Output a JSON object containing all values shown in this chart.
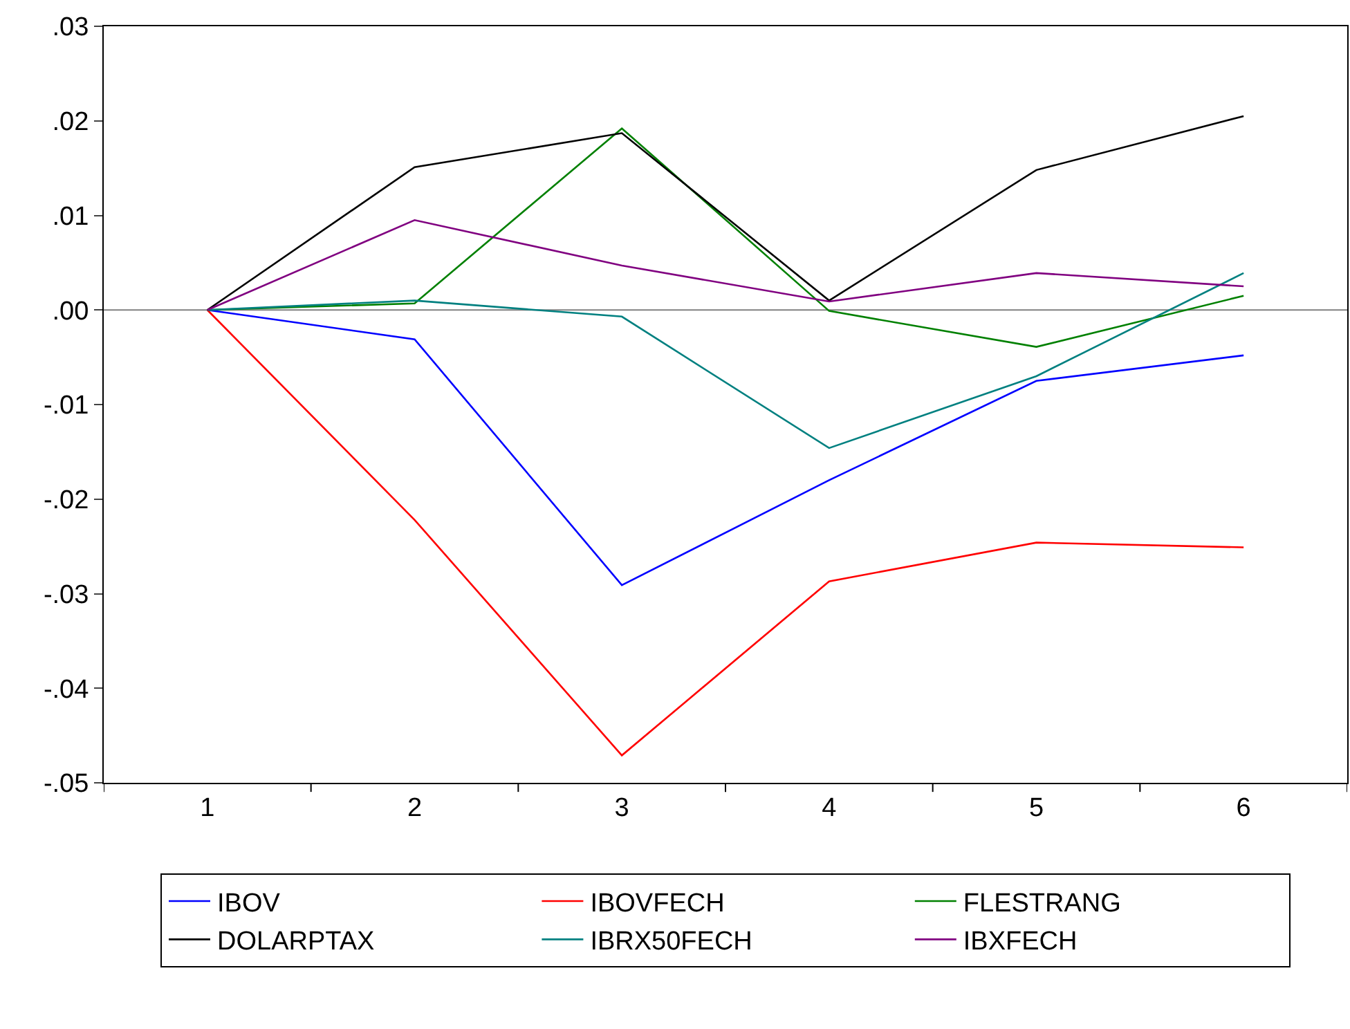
{
  "chart_data": {
    "type": "line",
    "categories": [
      "1",
      "2",
      "3",
      "4",
      "5",
      "6"
    ],
    "series": [
      {
        "name": "IBOV",
        "color": "#0000ff",
        "values": [
          0,
          -0.0031,
          -0.0291,
          -0.018,
          -0.0075,
          -0.0048
        ]
      },
      {
        "name": "IBOVFECH",
        "color": "#ff0000",
        "values": [
          0,
          -0.0222,
          -0.0471,
          -0.0287,
          -0.0246,
          -0.0251
        ]
      },
      {
        "name": "FLESTRANG",
        "color": "#008000",
        "values": [
          0,
          0.0007,
          0.0192,
          -0.0001,
          -0.0039,
          0.0015
        ]
      },
      {
        "name": "DOLARPTAX",
        "color": "#000000",
        "values": [
          0,
          0.0151,
          0.0187,
          0.001,
          0.0148,
          0.0205
        ]
      },
      {
        "name": "IBRX50FECH",
        "color": "#008080",
        "values": [
          0,
          0.001,
          -0.0007,
          -0.0146,
          -0.007,
          0.0039
        ]
      },
      {
        "name": "IBXFECH",
        "color": "#800080",
        "values": [
          0,
          0.0095,
          0.0047,
          0.0009,
          0.0039,
          0.0025
        ]
      }
    ],
    "ylim": [
      -0.05,
      0.03
    ],
    "yticks": [
      {
        "value": -0.05,
        "label": "-.05"
      },
      {
        "value": -0.04,
        "label": "-.04"
      },
      {
        "value": -0.03,
        "label": "-.03"
      },
      {
        "value": -0.02,
        "label": "-.02"
      },
      {
        "value": -0.01,
        "label": "-.01"
      },
      {
        "value": 0,
        "label": ".00"
      },
      {
        "value": 0.01,
        "label": ".01"
      },
      {
        "value": 0.02,
        "label": ".02"
      },
      {
        "value": 0.03,
        "label": ".03"
      }
    ],
    "ref_lines": [
      {
        "axis": "y",
        "value": 0,
        "color": "#808080"
      }
    ],
    "grid": false,
    "legend": "bottom",
    "marker": "none",
    "line_style": "solid"
  }
}
